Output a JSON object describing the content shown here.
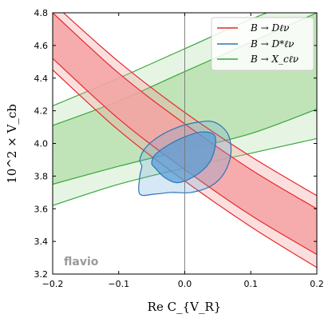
{
  "chart_data": {
    "type": "area",
    "xlabel": "Re C_{V_R}",
    "ylabel": "10^2 × V_cb",
    "xlim": [
      -0.2,
      0.2
    ],
    "ylim": [
      3.2,
      4.8
    ],
    "xticks": [
      "−0.2",
      "−0.1",
      "0.0",
      "0.1",
      "0.2"
    ],
    "xtick_values": [
      -0.2,
      -0.1,
      0.0,
      0.1,
      0.2
    ],
    "yticks": [
      "3.2",
      "3.4",
      "3.6",
      "3.8",
      "4.0",
      "4.2",
      "4.4",
      "4.6",
      "4.8"
    ],
    "ytick_values": [
      3.2,
      3.4,
      3.6,
      3.8,
      4.0,
      4.2,
      4.4,
      4.6,
      4.8
    ],
    "legend_position": "top-right",
    "watermark": "flavio",
    "vertical_reference_line_x": 0.0,
    "series": [
      {
        "name": "B → Dℓν",
        "color": "#e8282b",
        "fill_color": "#f4a3a3",
        "type": "band",
        "x": [
          -0.2,
          -0.1,
          0.0,
          0.1,
          0.2
        ],
        "inner_lower": [
          4.52,
          4.15,
          3.84,
          3.56,
          3.32
        ],
        "inner_upper": [
          4.8,
          4.43,
          4.12,
          3.84,
          3.6
        ],
        "outer_lower": [
          4.45,
          4.08,
          3.77,
          3.49,
          3.24
        ],
        "outer_upper": [
          4.86,
          4.5,
          4.19,
          3.92,
          3.68
        ]
      },
      {
        "name": "B → D*ℓν",
        "color": "#2e73b7",
        "fill_color": "#5b9fd6",
        "type": "contour",
        "inner_contour": [
          [
            -0.045,
            3.85
          ],
          [
            -0.03,
            3.79
          ],
          [
            -0.01,
            3.76
          ],
          [
            0.015,
            3.8
          ],
          [
            0.035,
            3.87
          ],
          [
            0.045,
            3.96
          ],
          [
            0.045,
            4.05
          ],
          [
            0.025,
            4.07
          ],
          [
            0.0,
            4.04
          ],
          [
            -0.025,
            3.99
          ],
          [
            -0.045,
            3.93
          ],
          [
            -0.05,
            3.88
          ]
        ],
        "outer_contour": [
          [
            -0.068,
            3.8
          ],
          [
            -0.068,
            3.69
          ],
          [
            -0.045,
            3.69
          ],
          [
            -0.02,
            3.7
          ],
          [
            0.01,
            3.7
          ],
          [
            0.04,
            3.74
          ],
          [
            0.06,
            3.82
          ],
          [
            0.07,
            3.94
          ],
          [
            0.065,
            4.06
          ],
          [
            0.045,
            4.13
          ],
          [
            0.02,
            4.13
          ],
          [
            -0.01,
            4.1
          ],
          [
            -0.04,
            4.04
          ],
          [
            -0.06,
            3.97
          ],
          [
            -0.068,
            3.9
          ],
          [
            -0.065,
            3.86
          ]
        ]
      },
      {
        "name": "B → X_cℓν",
        "color": "#3aa63a",
        "fill_color": "#b8e1b0",
        "type": "band",
        "x": [
          -0.2,
          -0.1,
          0.0,
          0.1,
          0.2
        ],
        "inner_lower": [
          3.75,
          3.86,
          3.96,
          4.06,
          4.21
        ],
        "inner_upper": [
          4.11,
          4.26,
          4.44,
          4.62,
          4.8
        ],
        "outer_lower": [
          3.62,
          3.75,
          3.85,
          3.94,
          4.03
        ],
        "outer_upper": [
          4.23,
          4.4,
          4.58,
          4.76,
          4.92
        ]
      }
    ]
  },
  "legend": {
    "items": [
      {
        "label": "B → Dℓν",
        "color": "#e8282b"
      },
      {
        "label": "B → D*ℓν",
        "color": "#2e73b7"
      },
      {
        "label": "B → X_cℓν",
        "color": "#3aa63a"
      }
    ]
  }
}
